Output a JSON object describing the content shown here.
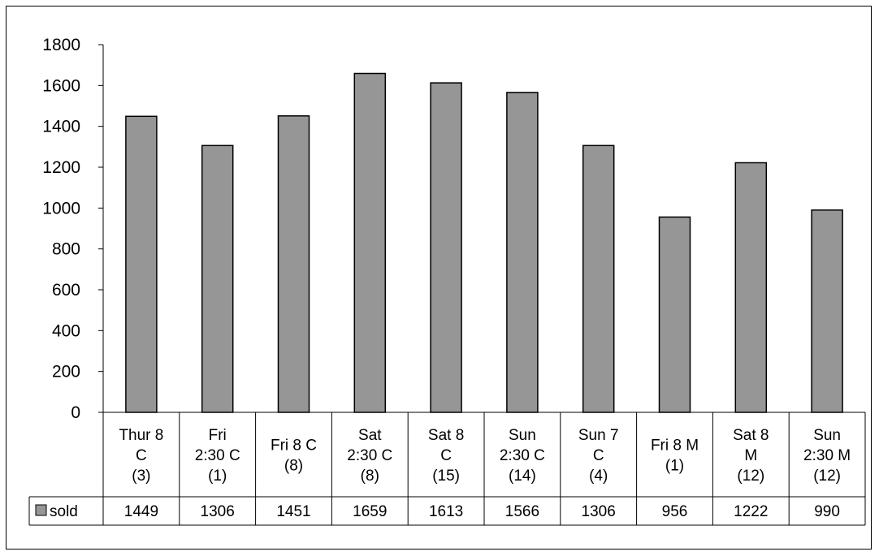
{
  "chart_data": {
    "type": "bar",
    "categories": [
      [
        "Thur 8",
        "C",
        "(3)"
      ],
      [
        "Fri",
        "2:30 C",
        "(1)"
      ],
      [
        "Fri 8 C",
        "(8)"
      ],
      [
        "Sat",
        "2:30 C",
        "(8)"
      ],
      [
        "Sat 8",
        "C",
        "(15)"
      ],
      [
        "Sun",
        "2:30 C",
        "(14)"
      ],
      [
        "Sun 7",
        "C",
        "(4)"
      ],
      [
        "Fri 8 M",
        "(1)"
      ],
      [
        "Sat 8",
        "M",
        "(12)"
      ],
      [
        "Sun",
        "2:30 M",
        "(12)"
      ]
    ],
    "series": [
      {
        "name": "sold",
        "color": "#969696",
        "values": [
          1449,
          1306,
          1451,
          1659,
          1613,
          1566,
          1306,
          956,
          1222,
          990
        ],
        "value_labels": [
          "1449",
          "1306",
          "1451",
          "1659",
          "1613",
          "1566",
          "1306",
          "956",
          "1222",
          "990"
        ]
      }
    ],
    "ylim": [
      0,
      1800
    ],
    "yticks": [
      0,
      200,
      400,
      600,
      800,
      1000,
      1200,
      1400,
      1600,
      1800
    ],
    "ytick_labels": [
      "0",
      "200",
      "400",
      "600",
      "800",
      "1000",
      "1200",
      "1400",
      "1600",
      "1800"
    ],
    "grid": false,
    "legend": "data-table",
    "data_table": true
  }
}
